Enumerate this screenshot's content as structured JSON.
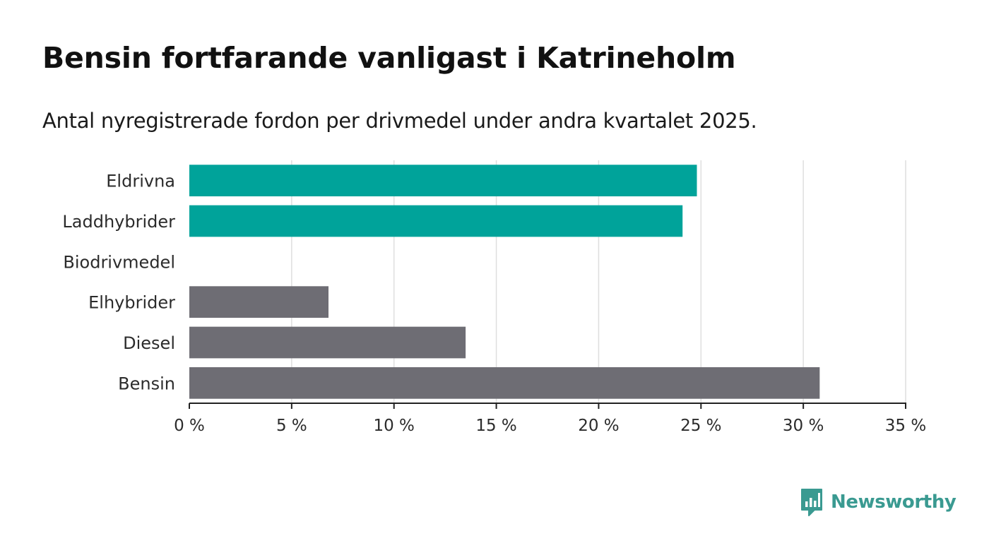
{
  "title": "Bensin fortfarande vanligast i Katrineholm",
  "subtitle": "Antal nyregistrerade fordon per drivmedel under andra kvartalet 2025.",
  "logo": {
    "text": "Newsworthy",
    "icon": "newsworthy-logo-icon",
    "color": "#3a9a91"
  },
  "chart_data": {
    "type": "bar",
    "orientation": "horizontal",
    "categories": [
      "Eldrivna",
      "Laddhybrider",
      "Biodrivmedel",
      "Elhybrider",
      "Diesel",
      "Bensin"
    ],
    "values": [
      24.8,
      24.1,
      0,
      6.8,
      13.5,
      30.8
    ],
    "colors": [
      "#00a39a",
      "#00a39a",
      "#00a39a",
      "#6e6d74",
      "#6e6d74",
      "#6e6d74"
    ],
    "xlim": [
      0,
      35
    ],
    "xticks": [
      0,
      5,
      10,
      15,
      20,
      25,
      30,
      35
    ],
    "tick_format": "{v} %",
    "grid": "vertical"
  }
}
